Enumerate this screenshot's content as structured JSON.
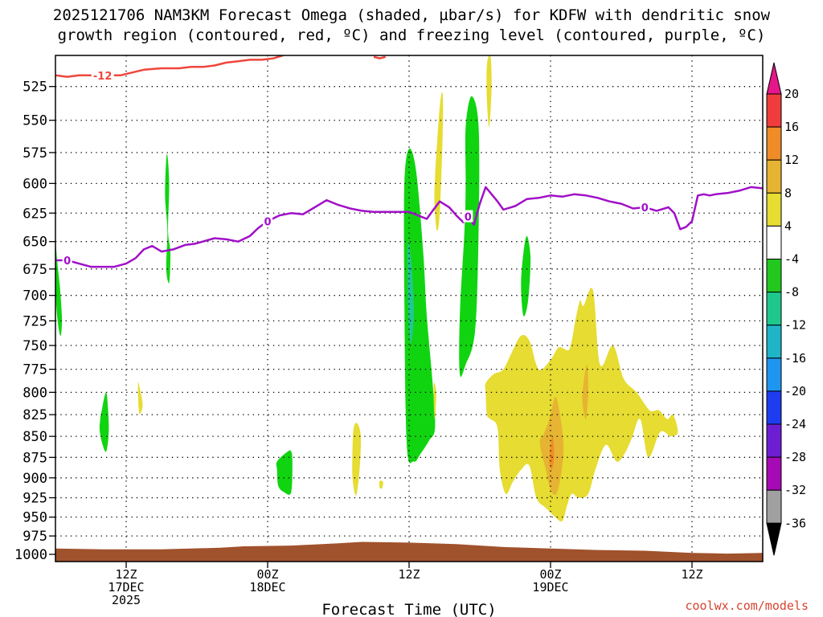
{
  "title": {
    "line1": "2025121706 NAM3KM Forecast Omega (shaded, µbar/s) for KDFW with dendritic snow",
    "line2": "growth region (contoured, red, ºC) and freezing level (contoured, purple, ºC)"
  },
  "credit": "coolwx.com/models",
  "chart_data": {
    "type": "heatmap",
    "title": "2025121706 NAM3KM Forecast Omega (shaded, µbar/s) for KDFW with dendritic snow growth region (contoured, red, ºC) and freezing level (contoured, purple, ºC)",
    "xlabel": "Forecast Time (UTC)",
    "ylabel": "",
    "x_unit": "hours since 2025-12-17 00Z",
    "xlim": [
      6,
      66
    ],
    "ylim": [
      1010,
      503
    ],
    "y_scale": "log-pressure",
    "grid": true,
    "x_ticks": [
      {
        "x": 12,
        "lines": [
          "12Z",
          "17DEC",
          "2025"
        ]
      },
      {
        "x": 24,
        "lines": [
          "00Z",
          "18DEC"
        ]
      },
      {
        "x": 36,
        "lines": [
          "12Z"
        ]
      },
      {
        "x": 48,
        "lines": [
          "00Z",
          "19DEC"
        ]
      },
      {
        "x": 60,
        "lines": [
          "12Z"
        ]
      }
    ],
    "y_ticks": [
      525,
      550,
      575,
      600,
      625,
      650,
      675,
      700,
      725,
      750,
      775,
      800,
      825,
      850,
      875,
      900,
      925,
      950,
      975,
      1000
    ],
    "colorbar": {
      "labels": [
        "20",
        "16",
        "12",
        "8",
        "4",
        "-4",
        "-8",
        "-12",
        "-16",
        "-20",
        "-24",
        "-28",
        "-32",
        "-36"
      ],
      "colors": [
        "#e4168a",
        "#f03c3c",
        "#f08c28",
        "#e6b432",
        "#e6dc32",
        "#ffffff",
        "#22c81e",
        "#1ec88c",
        "#20b4c8",
        "#1e96f0",
        "#1e3cf0",
        "#6e1ed2",
        "#a50ab4",
        "#a0a0a0",
        "#000000"
      ]
    },
    "omega_regions": [
      {
        "level": "-4 to -8",
        "color": "#11d411",
        "x": [
          6.0,
          6.15,
          6.4,
          6.55,
          6.4,
          6.1,
          6.0
        ],
        "p": [
          650,
          668,
          695,
          725,
          740,
          715,
          680
        ]
      },
      {
        "level": "-4 to -8",
        "color": "#11d411",
        "x": [
          15.45,
          15.65,
          15.55,
          15.75,
          15.65,
          15.4,
          15.5,
          15.3
        ],
        "p": [
          576,
          600,
          640,
          660,
          688,
          675,
          640,
          610
        ]
      },
      {
        "level": "-4 to -8",
        "color": "#11d411",
        "x": [
          9.9,
          10.3,
          10.5,
          10.5,
          10.3,
          10.0,
          9.75,
          9.8
        ],
        "p": [
          822,
          800,
          828,
          850,
          868,
          860,
          843,
          830
        ]
      },
      {
        "level": "-4 to -8",
        "color": "#11d411",
        "x": [
          24.8,
          25.7,
          26.0,
          26.1,
          26.0,
          25.4,
          24.9,
          24.8
        ],
        "p": [
          880,
          868,
          868,
          880,
          918,
          918,
          910,
          890
        ]
      },
      {
        "level": "-4 to -8",
        "color": "#11d411",
        "x": [
          35.6,
          36.0,
          36.6,
          37.2,
          37.5,
          38.0,
          38.2,
          37.7,
          37.0,
          36.4,
          35.8,
          35.6
        ],
        "p": [
          600,
          572,
          590,
          660,
          720,
          790,
          840,
          855,
          870,
          880,
          860,
          700
        ]
      },
      {
        "level": "-8 to -12",
        "color": "#21c796",
        "x": [
          35.9,
          36.2,
          36.4,
          36.1,
          35.9
        ],
        "p": [
          650,
          670,
          720,
          748,
          700
        ]
      },
      {
        "level": "-4 to -8",
        "color": "#11d411",
        "x": [
          40.8,
          41.3,
          41.9,
          41.9,
          41.6,
          40.8,
          40.3,
          40.3,
          40.7,
          40.8
        ],
        "p": [
          555,
          532,
          555,
          640,
          735,
          770,
          780,
          720,
          640,
          600
        ]
      },
      {
        "level": "-4 to -8",
        "color": "#11d411",
        "x": [
          45.7,
          46.0,
          46.3,
          46.1,
          45.7,
          45.5
        ],
        "p": [
          660,
          645,
          665,
          705,
          720,
          690
        ]
      },
      {
        "level": "4 to 8",
        "color": "#e6dc32",
        "x": [
          38.25,
          38.6,
          38.85,
          38.85,
          38.6,
          38.35,
          38.15,
          38.2
        ],
        "p": [
          585,
          540,
          530,
          560,
          625,
          640,
          615,
          595
        ]
      },
      {
        "level": "4 to 8",
        "color": "#e6dc32",
        "x": [
          42.6,
          42.9,
          43.0,
          42.8,
          42.6
        ],
        "p": [
          510,
          503,
          525,
          555,
          535
        ]
      },
      {
        "level": "4 to 8",
        "color": "#e6dc32",
        "x": [
          13.0,
          13.2,
          13.4,
          13.1
        ],
        "p": [
          790,
          798,
          815,
          823
        ]
      },
      {
        "level": "4 to 8",
        "color": "#e6dc32",
        "x": [
          31.3,
          31.6,
          31.9,
          31.8,
          31.5,
          31.2,
          31.2
        ],
        "p": [
          840,
          835,
          850,
          890,
          922,
          900,
          865
        ]
      },
      {
        "level": "4 to 8",
        "color": "#e6dc32",
        "x": [
          33.5,
          33.8,
          33.7,
          33.5
        ],
        "p": [
          904,
          905,
          913,
          912
        ]
      },
      {
        "level": "4 to 8",
        "color": "#e6dc32",
        "x": [
          38.1,
          38.3,
          38.2,
          38.1
        ],
        "p": [
          790,
          800,
          830,
          815
        ]
      },
      {
        "level": "4 to 8",
        "color": "#e6dc32",
        "x": [
          42.5,
          43.2,
          44.0,
          44.8,
          45.5,
          46.2,
          47.0,
          48.0,
          48.7,
          49.5,
          49.8,
          50.1,
          50.5,
          50.8,
          51.6,
          52.2,
          53.3,
          54.2,
          55.3,
          56.4,
          57.2,
          57.9,
          58.4,
          58.8,
          58.2,
          57.3,
          56.3,
          55.6,
          54.9,
          54.3,
          53.6,
          52.7,
          51.8,
          51.2,
          50.4,
          49.8,
          49.4,
          49.0,
          48.4,
          47.6,
          46.8,
          46.2,
          45.5,
          44.8,
          44.2,
          43.7,
          43.5,
          42.9,
          42.6,
          42.5
        ],
        "p": [
          790,
          780,
          775,
          755,
          740,
          745,
          775,
          765,
          752,
          755,
          745,
          725,
          705,
          710,
          695,
          770,
          750,
          785,
          800,
          820,
          820,
          830,
          825,
          845,
          850,
          845,
          875,
          830,
          852,
          870,
          880,
          860,
          890,
          920,
          925,
          920,
          935,
          955,
          950,
          938,
          925,
          885,
          890,
          905,
          920,
          890,
          840,
          830,
          825,
          800
        ]
      },
      {
        "level": "8 to 12",
        "color": "#e6b432",
        "x": [
          47.4,
          47.9,
          48.4,
          48.8,
          49.1,
          48.9,
          48.5,
          48.0,
          47.6,
          47.2,
          47.1,
          47.3
        ],
        "p": [
          848,
          830,
          805,
          825,
          860,
          895,
          920,
          915,
          890,
          868,
          855,
          850
        ]
      },
      {
        "level": "8 to 12",
        "color": "#e6b432",
        "x": [
          50.8,
          51.1,
          51.2,
          51.0,
          50.7
        ],
        "p": [
          790,
          770,
          800,
          830,
          810
        ]
      },
      {
        "level": "12 to 16",
        "color": "#f08c28",
        "x": [
          48.0,
          48.2,
          48.3,
          48.1,
          47.9
        ],
        "p": [
          862,
          850,
          875,
          890,
          880
        ]
      }
    ],
    "red_contours": [
      {
        "level": -12,
        "label": "-12",
        "label_x": 10.0,
        "x": [
          6,
          7,
          8,
          9,
          9.5,
          10.5,
          11.5,
          12.5,
          13.5,
          15,
          16.5,
          17.5,
          18.5,
          19.5,
          20.5,
          21.5,
          22.5,
          23.5,
          24.5,
          25.3
        ],
        "p": [
          517,
          518,
          517,
          517,
          517,
          517,
          517,
          515,
          513,
          512,
          512,
          511,
          511,
          510,
          508,
          507,
          506,
          506,
          505,
          503
        ]
      },
      {
        "level": -12,
        "label": "",
        "label_x": null,
        "x": [
          33.0,
          33.5,
          34.0
        ],
        "p": [
          504,
          505,
          504
        ]
      }
    ],
    "purple_contours": [
      {
        "level": 0,
        "label": "0",
        "label_x": 7.0,
        "label_x2": 24.0,
        "label_x3": 41.0,
        "label_x4": 56.0,
        "x": [
          6,
          7,
          8,
          9,
          10,
          11,
          12,
          12.8,
          13.5,
          14.2,
          15,
          16,
          17,
          17.8,
          18.5,
          19.5,
          20.5,
          21.5,
          22.5,
          23.2,
          24,
          25,
          26,
          27,
          28,
          29,
          30,
          31,
          32,
          33,
          34,
          35,
          36,
          37,
          37.5,
          38,
          38.6,
          39.4,
          40,
          40.6,
          41,
          41.5,
          42,
          42.5,
          43,
          43.5,
          44,
          45,
          46,
          47,
          48,
          49,
          50,
          51,
          52,
          53,
          54,
          55,
          56,
          57,
          58,
          58.5,
          59,
          59.5,
          60,
          60.5,
          61,
          61.5,
          62,
          63,
          64,
          65,
          66
        ],
        "p": [
          667,
          667,
          670,
          673,
          673,
          673,
          670,
          665,
          657,
          654,
          659,
          657,
          653,
          652,
          650,
          647,
          648,
          650,
          645,
          638,
          632,
          627,
          625,
          626,
          620,
          614,
          618,
          621,
          623,
          624,
          624,
          624,
          624,
          628,
          630,
          623,
          615,
          620,
          627,
          633,
          628,
          635,
          617,
          603,
          609,
          615,
          622,
          619,
          613,
          612,
          610,
          611,
          609,
          610,
          612,
          615,
          617,
          621,
          620,
          623,
          620,
          625,
          639,
          637,
          632,
          610,
          609,
          610,
          609,
          608,
          606,
          603,
          604
        ]
      }
    ],
    "surface": {
      "color": "#a0522d",
      "x": [
        6,
        10,
        15,
        20,
        22,
        26,
        30,
        32,
        36,
        40,
        44,
        48,
        52,
        56,
        60,
        63,
        66
      ],
      "p_top": [
        992,
        993,
        993,
        991,
        989,
        988,
        985,
        983,
        984,
        986,
        990,
        992,
        994,
        995,
        998,
        999,
        998
      ]
    }
  }
}
